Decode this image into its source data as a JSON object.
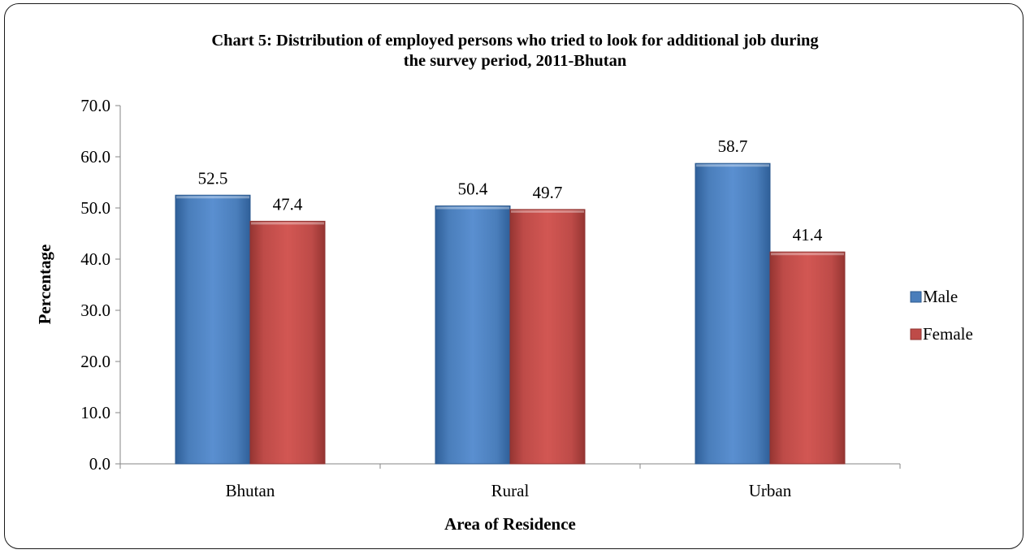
{
  "chart_data": {
    "type": "bar",
    "title_lines": [
      "Chart 5: Distribution of employed persons who tried to look for additional job during",
      "the survey period, 2011-Bhutan"
    ],
    "xlabel": "Area of Residence",
    "ylabel": "Percentage",
    "categories": [
      "Bhutan",
      "Rural",
      "Urban"
    ],
    "series": [
      {
        "name": "Male",
        "values": [
          52.5,
          50.4,
          58.7
        ],
        "color": "#4a7ebb"
      },
      {
        "name": "Female",
        "values": [
          47.4,
          49.7,
          41.4
        ],
        "color": "#be4b48"
      }
    ],
    "data_labels": [
      [
        "52.5",
        "50.4",
        "58.7"
      ],
      [
        "47.4",
        "49.7",
        "41.4"
      ]
    ],
    "ylim": [
      0,
      70
    ],
    "yticks": [
      "0.0",
      "10.0",
      "20.0",
      "30.0",
      "40.0",
      "50.0",
      "60.0",
      "70.0"
    ],
    "grid": false,
    "legend_position": "right"
  }
}
